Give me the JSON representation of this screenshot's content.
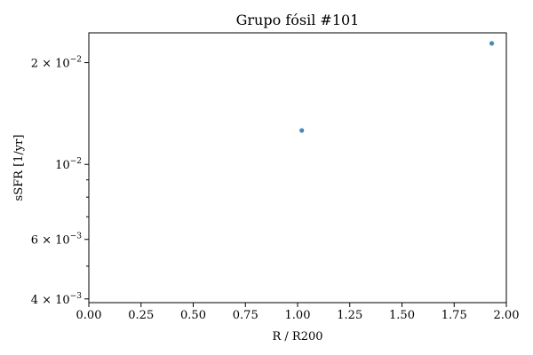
{
  "chart_data": {
    "type": "scatter",
    "title": "Grupo fósil #101",
    "xlabel": "R / R200",
    "ylabel": "sSFR [1/yr]",
    "xlim": [
      0.0,
      2.0
    ],
    "ylim": [
      0.0039,
      0.0245
    ],
    "yscale": "log",
    "grid": false,
    "x_ticks": [
      "0.00",
      "0.25",
      "0.50",
      "0.75",
      "1.00",
      "1.25",
      "1.50",
      "1.75",
      "2.00"
    ],
    "x_tick_values": [
      0,
      0.25,
      0.5,
      0.75,
      1.0,
      1.25,
      1.5,
      1.75,
      2.0
    ],
    "y_major_ticks": [
      {
        "value": 0.004,
        "base": "4 × 10",
        "exp": "−3"
      },
      {
        "value": 0.006,
        "base": "6 × 10",
        "exp": "−3"
      },
      {
        "value": 0.01,
        "base": "10",
        "exp": "−2"
      },
      {
        "value": 0.02,
        "base": "2 × 10",
        "exp": "−2"
      }
    ],
    "y_minor_ticks": [
      0.005,
      0.007,
      0.008,
      0.009
    ],
    "marker_color": "#4a89b8",
    "points": [
      {
        "x": 1.02,
        "y": 0.0126
      },
      {
        "x": 1.93,
        "y": 0.0228
      }
    ]
  }
}
